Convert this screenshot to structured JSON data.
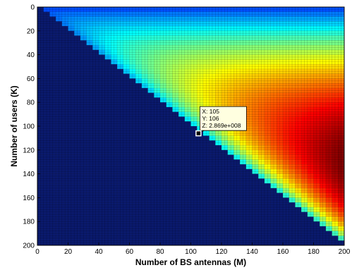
{
  "chart_data": {
    "type": "heatmap",
    "title": "",
    "xlabel": "Number of BS antennas (M)",
    "ylabel": "Number of users (K)",
    "xlim": [
      0,
      200
    ],
    "ylim": [
      0,
      200
    ],
    "y_axis_direction": "reversed",
    "x_ticks": [
      "0",
      "20",
      "40",
      "60",
      "80",
      "100",
      "120",
      "140",
      "160",
      "180",
      "200"
    ],
    "y_ticks": [
      "0",
      "20",
      "40",
      "60",
      "80",
      "100",
      "120",
      "140",
      "160",
      "180",
      "200"
    ],
    "grid": true,
    "colormap": "jet",
    "valid_region": "K < M",
    "invalid_region_color": "#0a1a6e",
    "peak": {
      "x": 105,
      "y": 106,
      "z": 286900000.0
    },
    "datatip": {
      "x_text": "X: 105",
      "y_text": "Y: 106",
      "z_text": "Z: 2.869e+008"
    }
  }
}
